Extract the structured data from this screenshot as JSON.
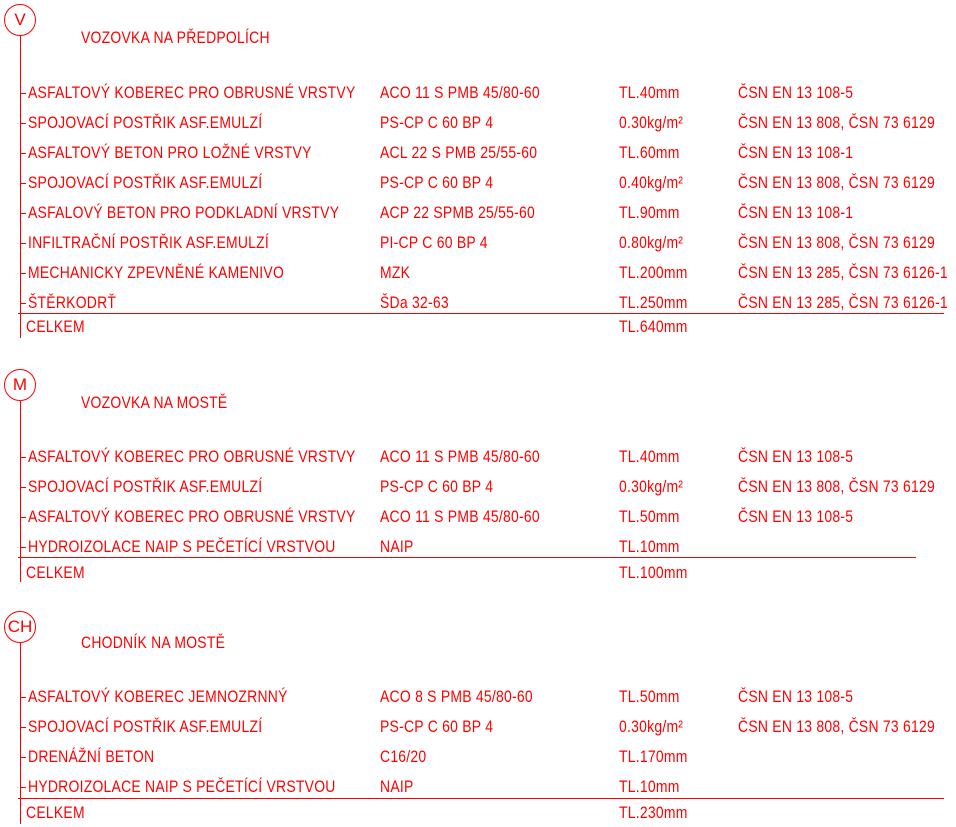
{
  "accent_color": "#ff0000",
  "sections": [
    {
      "symbol": "V",
      "title": "VOZOVKA NA PŘEDPOLÍCH",
      "rows": [
        {
          "name": "ASFALTOVÝ KOBEREC PRO OBRUSNÉ VRSTVY",
          "material": "ACO 11 S PMB 45/80-60",
          "amount": "TL.40mm",
          "standard": "ČSN EN 13 108-5"
        },
        {
          "name": "SPOJOVACÍ POSTŘIK ASF.EMULZÍ",
          "material": "PS-CP C 60 BP 4",
          "amount": "0.30kg/m²",
          "standard": "ČSN EN 13 808, ČSN 73 6129"
        },
        {
          "name": "ASFALTOVÝ BETON PRO LOŽNÉ VRSTVY",
          "material": "ACL 22 S PMB 25/55-60",
          "amount": "TL.60mm",
          "standard": "ČSN EN 13 108-1"
        },
        {
          "name": "SPOJOVACÍ POSTŘIK ASF.EMULZÍ",
          "material": "PS-CP C 60 BP 4",
          "amount": "0.40kg/m²",
          "standard": "ČSN EN 13 808, ČSN 73 6129"
        },
        {
          "name": "ASFALOVÝ BETON PRO PODKLADNÍ VRSTVY",
          "material": "ACP 22 SPMB 25/55-60",
          "amount": "TL.90mm",
          "standard": "ČSN EN 13 108-1"
        },
        {
          "name": "INFILTRAČNÍ POSTŘIK ASF.EMULZÍ",
          "material": "PI-CP C 60 BP 4",
          "amount": "0.80kg/m²",
          "standard": "ČSN EN 13 808, ČSN 73 6129"
        },
        {
          "name": "MECHANICKY ZPEVNĚNÉ KAMENIVO",
          "material": "MZK",
          "amount": "TL.200mm",
          "standard": "ČSN EN 13 285, ČSN 73 6126-1"
        },
        {
          "name": "ŠTĚRKODRŤ",
          "material": "ŠDa 32-63",
          "amount": "TL.250mm",
          "standard": "ČSN EN 13 285, ČSN 73 6126-1"
        }
      ],
      "total_label": "CELKEM",
      "total_value": "TL.640mm"
    },
    {
      "symbol": "M",
      "title": "VOZOVKA NA MOSTĚ",
      "rows": [
        {
          "name": "ASFALTOVÝ KOBEREC PRO OBRUSNÉ VRSTVY",
          "material": "ACO 11 S PMB 45/80-60",
          "amount": "TL.40mm",
          "standard": "ČSN EN 13 108-5"
        },
        {
          "name": "SPOJOVACÍ POSTŘIK ASF.EMULZÍ",
          "material": "PS-CP C 60 BP 4",
          "amount": "0.30kg/m²",
          "standard": "ČSN EN 13 808, ČSN 73 6129"
        },
        {
          "name": "ASFALTOVÝ KOBEREC PRO OBRUSNÉ VRSTVY",
          "material": "ACO 11 S PMB 45/80-60",
          "amount": "TL.50mm",
          "standard": "ČSN EN 13 108-5"
        },
        {
          "name": "HYDROIZOLACE NAIP S PEČETÍCÍ VRSTVOU",
          "material": "NAIP",
          "amount": "TL.10mm",
          "standard": ""
        }
      ],
      "total_label": "CELKEM",
      "total_value": "TL.100mm"
    },
    {
      "symbol": "CH",
      "title": "CHODNÍK NA MOSTĚ",
      "rows": [
        {
          "name": "ASFALTOVÝ KOBEREC JEMNOZRNNÝ",
          "material": "ACO 8 S PMB 45/80-60",
          "amount": "TL.50mm",
          "standard": "ČSN EN 13 108-5"
        },
        {
          "name": "SPOJOVACÍ POSTŘIK ASF.EMULZÍ",
          "material": "PS-CP C 60 BP 4",
          "amount": "0.30kg/m²",
          "standard": "ČSN EN 13 808, ČSN 73 6129"
        },
        {
          "name": "DRENÁŽNÍ BETON",
          "material": "C16/20",
          "amount": "TL.170mm",
          "standard": ""
        },
        {
          "name": "HYDROIZOLACE NAIP S PEČETÍCÍ VRSTVOU",
          "material": "NAIP",
          "amount": "TL.10mm",
          "standard": ""
        }
      ],
      "total_label": "CELKEM",
      "total_value": "TL.230mm"
    }
  ]
}
